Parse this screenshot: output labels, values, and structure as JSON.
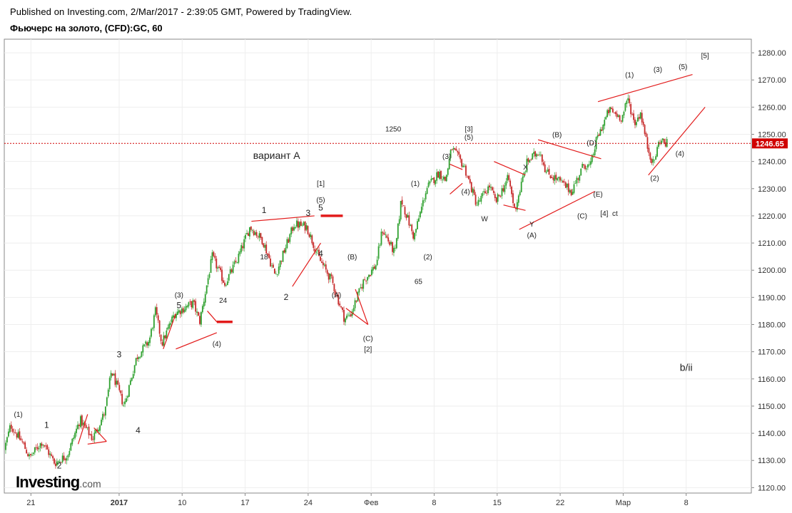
{
  "header": {
    "published": "Published on Investing.com, 2/Mar/2017 - 2:39:05 GMT, Powered by TradingView.",
    "symbol": "Фьючерс на золото, (CFD):GC, 60"
  },
  "logo": {
    "brand": "Investing",
    "suffix": ".com"
  },
  "colors": {
    "up": "#2ea02e",
    "down": "#c62828",
    "marker": "#e21b1b",
    "price_line": "#d00000"
  },
  "chart_data": {
    "type": "candlestick",
    "title": "",
    "timeframe": "60",
    "ylim": [
      1118,
      1285
    ],
    "xlim": [
      0,
      118
    ],
    "y_ticks": [
      "1120.00",
      "1130.00",
      "1140.00",
      "1150.00",
      "1160.00",
      "1170.00",
      "1180.00",
      "1190.00",
      "1200.00",
      "1210.00",
      "1220.00",
      "1230.00",
      "1240.00",
      "1250.00",
      "1260.00",
      "1270.00",
      "1280.00"
    ],
    "x_ticks": [
      {
        "label": "21",
        "t": 4
      },
      {
        "label": "2017",
        "t": 18
      },
      {
        "label": "10",
        "t": 28
      },
      {
        "label": "17",
        "t": 38
      },
      {
        "label": "24",
        "t": 48
      },
      {
        "label": "Фев",
        "t": 58
      },
      {
        "label": "8",
        "t": 68
      },
      {
        "label": "15",
        "t": 78
      },
      {
        "label": "22",
        "t": 88
      },
      {
        "label": "Мар",
        "t": 98
      },
      {
        "label": "8",
        "t": 108
      }
    ],
    "last_price": "1246.65",
    "last_price_value": 1246.65,
    "price_path": [
      {
        "t": 0,
        "p": 1134
      },
      {
        "t": 1,
        "p": 1143
      },
      {
        "t": 3,
        "p": 1136
      },
      {
        "t": 4,
        "p": 1131
      },
      {
        "t": 6,
        "p": 1137
      },
      {
        "t": 8,
        "p": 1129
      },
      {
        "t": 10,
        "p": 1132
      },
      {
        "t": 12,
        "p": 1145
      },
      {
        "t": 14,
        "p": 1138
      },
      {
        "t": 16,
        "p": 1148
      },
      {
        "t": 17,
        "p": 1163
      },
      {
        "t": 19,
        "p": 1150
      },
      {
        "t": 21,
        "p": 1168
      },
      {
        "t": 23,
        "p": 1174
      },
      {
        "t": 24,
        "p": 1185
      },
      {
        "t": 25,
        "p": 1173
      },
      {
        "t": 27,
        "p": 1184
      },
      {
        "t": 30,
        "p": 1188
      },
      {
        "t": 31,
        "p": 1181
      },
      {
        "t": 33,
        "p": 1205
      },
      {
        "t": 35,
        "p": 1195
      },
      {
        "t": 37,
        "p": 1204
      },
      {
        "t": 39,
        "p": 1216
      },
      {
        "t": 41,
        "p": 1211
      },
      {
        "t": 43,
        "p": 1198
      },
      {
        "t": 46,
        "p": 1217
      },
      {
        "t": 48,
        "p": 1216
      },
      {
        "t": 50,
        "p": 1204
      },
      {
        "t": 52,
        "p": 1196
      },
      {
        "t": 54,
        "p": 1182
      },
      {
        "t": 55,
        "p": 1184
      },
      {
        "t": 57,
        "p": 1196
      },
      {
        "t": 59,
        "p": 1202
      },
      {
        "t": 60,
        "p": 1215
      },
      {
        "t": 62,
        "p": 1206
      },
      {
        "t": 63,
        "p": 1226
      },
      {
        "t": 65,
        "p": 1212
      },
      {
        "t": 67,
        "p": 1230
      },
      {
        "t": 69,
        "p": 1236
      },
      {
        "t": 70,
        "p": 1233
      },
      {
        "t": 71,
        "p": 1245
      },
      {
        "t": 73,
        "p": 1238
      },
      {
        "t": 75,
        "p": 1224
      },
      {
        "t": 77,
        "p": 1231
      },
      {
        "t": 78,
        "p": 1225
      },
      {
        "t": 80,
        "p": 1234
      },
      {
        "t": 81,
        "p": 1222
      },
      {
        "t": 83,
        "p": 1240
      },
      {
        "t": 85,
        "p": 1244
      },
      {
        "t": 86,
        "p": 1236
      },
      {
        "t": 88,
        "p": 1233
      },
      {
        "t": 90,
        "p": 1229
      },
      {
        "t": 92,
        "p": 1239
      },
      {
        "t": 93,
        "p": 1238
      },
      {
        "t": 94,
        "p": 1248
      },
      {
        "t": 96,
        "p": 1259
      },
      {
        "t": 98,
        "p": 1256
      },
      {
        "t": 99,
        "p": 1263
      },
      {
        "t": 100,
        "p": 1254
      },
      {
        "t": 101,
        "p": 1258
      },
      {
        "t": 102,
        "p": 1246
      },
      {
        "t": 103,
        "p": 1239
      },
      {
        "t": 104,
        "p": 1248
      },
      {
        "t": 105,
        "p": 1246.65
      }
    ],
    "annotations": [
      {
        "text": "вариант A",
        "t": 43,
        "p": 1241,
        "size": 14
      },
      {
        "text": "1250",
        "t": 61.5,
        "p": 1251,
        "size": 10,
        "color": "#5a6f86"
      },
      {
        "text": "65",
        "t": 65.5,
        "p": 1195,
        "size": 10,
        "color": "#5a6f86"
      },
      {
        "text": "b/ii",
        "t": 108,
        "p": 1163,
        "size": 14
      },
      {
        "text": "(1)",
        "t": 2,
        "p": 1146
      },
      {
        "text": "1",
        "t": 6.5,
        "p": 1142,
        "size": 12
      },
      {
        "text": "2",
        "t": 8.5,
        "p": 1127,
        "size": 12
      },
      {
        "text": "3",
        "t": 18,
        "p": 1168,
        "size": 12
      },
      {
        "text": "4",
        "t": 21,
        "p": 1140,
        "size": 12
      },
      {
        "text": "(3)",
        "t": 27.5,
        "p": 1190
      },
      {
        "text": "5",
        "t": 27.5,
        "p": 1186,
        "size": 12
      },
      {
        "text": "24",
        "t": 34.5,
        "p": 1188,
        "size": 10
      },
      {
        "text": "(4)",
        "t": 33.5,
        "p": 1172
      },
      {
        "text": "18",
        "t": 41,
        "p": 1204,
        "size": 10
      },
      {
        "text": "1",
        "t": 41,
        "p": 1221,
        "size": 12
      },
      {
        "text": "2",
        "t": 44.5,
        "p": 1189,
        "size": 12
      },
      {
        "text": "3",
        "t": 48,
        "p": 1220,
        "size": 12
      },
      {
        "text": "4",
        "t": 50,
        "p": 1205,
        "size": 12
      },
      {
        "text": "[1]",
        "t": 50,
        "p": 1231
      },
      {
        "text": "(5)",
        "t": 50,
        "p": 1225
      },
      {
        "text": "5",
        "t": 50,
        "p": 1222,
        "size": 12
      },
      {
        "text": "(B)",
        "t": 55,
        "p": 1204
      },
      {
        "text": "(A)",
        "t": 52.5,
        "p": 1190
      },
      {
        "text": "(C)",
        "t": 57.5,
        "p": 1174
      },
      {
        "text": "[2]",
        "t": 57.5,
        "p": 1170
      },
      {
        "text": "(1)",
        "t": 65,
        "p": 1231
      },
      {
        "text": "(2)",
        "t": 67,
        "p": 1204
      },
      {
        "text": "(3)",
        "t": 70,
        "p": 1241
      },
      {
        "text": "[3]",
        "t": 73.5,
        "p": 1251
      },
      {
        "text": "(5)",
        "t": 73.5,
        "p": 1248
      },
      {
        "text": "(4)",
        "t": 73,
        "p": 1228
      },
      {
        "text": "W",
        "t": 76,
        "p": 1218
      },
      {
        "text": "X",
        "t": 82.5,
        "p": 1237
      },
      {
        "text": "Y",
        "t": 83.5,
        "p": 1216
      },
      {
        "text": "(A)",
        "t": 83.5,
        "p": 1212
      },
      {
        "text": "(B)",
        "t": 87.5,
        "p": 1249
      },
      {
        "text": "(C)",
        "t": 91.5,
        "p": 1219
      },
      {
        "text": "(D)",
        "t": 93,
        "p": 1246
      },
      {
        "text": "(E)",
        "t": 94,
        "p": 1227
      },
      {
        "text": "[4]",
        "t": 95,
        "p": 1220
      },
      {
        "text": "ct",
        "t": 96.7,
        "p": 1220
      },
      {
        "text": "(1)",
        "t": 99,
        "p": 1271
      },
      {
        "text": "(3)",
        "t": 103.5,
        "p": 1273
      },
      {
        "text": "(5)",
        "t": 107.5,
        "p": 1274
      },
      {
        "text": "[5]",
        "t": 111,
        "p": 1278
      },
      {
        "text": "(4)",
        "t": 107,
        "p": 1242
      },
      {
        "text": "(2)",
        "t": 103,
        "p": 1233
      }
    ],
    "trend_lines": [
      [
        11.5,
        1136,
        13,
        1147
      ],
      [
        13,
        1136,
        16,
        1137
      ],
      [
        14,
        1142,
        16,
        1137
      ],
      [
        25,
        1171,
        27,
        1184
      ],
      [
        27,
        1171,
        33.5,
        1177
      ],
      [
        32,
        1185,
        33.5,
        1181
      ],
      [
        39,
        1218,
        49,
        1220
      ],
      [
        45.5,
        1194,
        50,
        1210
      ],
      [
        54,
        1186,
        57.5,
        1180
      ],
      [
        55.5,
        1193,
        57.5,
        1180
      ],
      [
        70.5,
        1239,
        72.5,
        1237
      ],
      [
        70.5,
        1228,
        72.5,
        1232
      ],
      [
        77.5,
        1240,
        82.5,
        1235
      ],
      [
        79,
        1224,
        82.5,
        1222
      ],
      [
        81.5,
        1215,
        93.5,
        1229
      ],
      [
        84.5,
        1248,
        94.5,
        1241
      ],
      [
        94,
        1262,
        109,
        1272
      ],
      [
        102,
        1235,
        111,
        1260
      ]
    ],
    "markers": [
      [
        33.5,
        1181,
        36,
        1181
      ],
      [
        50,
        1220,
        53.5,
        1220
      ]
    ]
  }
}
